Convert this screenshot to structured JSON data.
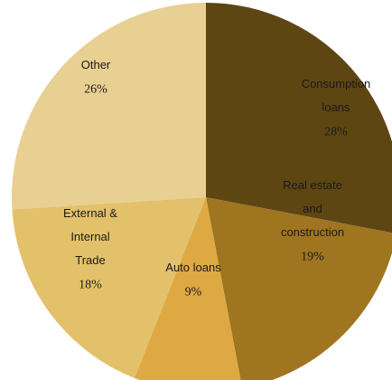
{
  "chart_data": {
    "type": "pie",
    "title": "",
    "slices": [
      {
        "label_lines": [
          "Consumption",
          "loans"
        ],
        "value": 28,
        "value_label": "28%",
        "color": "#5e4613"
      },
      {
        "label_lines": [
          "Real estate",
          "and",
          "construction"
        ],
        "value": 19,
        "value_label": "19%",
        "color": "#9f751f"
      },
      {
        "label_lines": [
          "Auto loans"
        ],
        "value": 9,
        "value_label": "9%",
        "color": "#dea843"
      },
      {
        "label_lines": [
          "External &",
          "Internal",
          "Trade"
        ],
        "value": 18,
        "value_label": "18%",
        "color": "#e3c16a"
      },
      {
        "label_lines": [
          "Other"
        ],
        "value": 26,
        "value_label": "26%",
        "color": "#e8d092"
      }
    ],
    "start_angle": "12 o'clock",
    "direction": "clockwise",
    "legend": "none"
  }
}
